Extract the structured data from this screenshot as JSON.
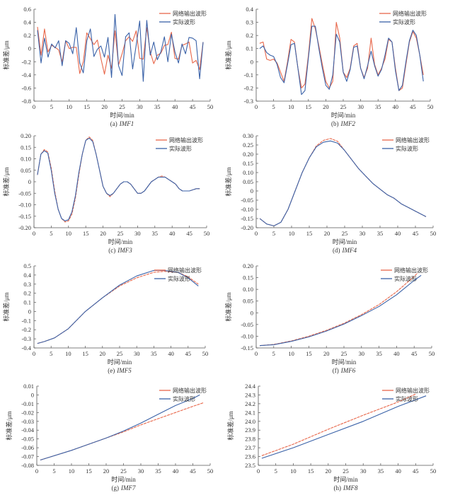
{
  "legend": {
    "predicted": "网络输出波形",
    "actual": "实际波形"
  },
  "colors": {
    "predicted": "#e8674a",
    "actual": "#3a62a8",
    "axis": "#555555"
  },
  "chart_data": [
    {
      "type": "line",
      "id": "a",
      "caption_prefix": "(a)",
      "caption_name": "IMF1",
      "xlabel": "时间/min",
      "ylabel": "标准差/μm",
      "xlim": [
        0,
        50
      ],
      "ylim": [
        -0.8,
        0.6
      ],
      "xticks": [
        "0",
        "5",
        "10",
        "15",
        "20",
        "25",
        "30",
        "35",
        "40",
        "45",
        "50"
      ],
      "yticks": [
        "-0.8",
        "-0.6",
        "-0.4",
        "-0.2",
        "0",
        "0.2",
        "0.4",
        "0.6"
      ],
      "series": [
        {
          "name": "网络输出波形",
          "x_start": 1,
          "values": [
            0.33,
            -0.1,
            0.3,
            -0.05,
            0.05,
            0.02,
            -0.02,
            -0.2,
            0.12,
            0.0,
            0.02,
            0.02,
            -0.38,
            -0.2,
            0.24,
            0.15,
            0.06,
            0.13,
            -0.15,
            -0.39,
            -0.1,
            -0.3,
            0.27,
            -0.25,
            -0.08,
            0.12,
            0.18,
            0.11,
            0.27,
            -0.15,
            -0.16,
            0.32,
            -0.05,
            -0.23,
            -0.1,
            -0.07,
            0.05,
            0.06,
            0.25,
            -0.15,
            -0.16,
            0.05,
            0.07,
            0.1,
            -0.22,
            -0.18,
            -0.32,
            0.1
          ]
        },
        {
          "name": "实际波形",
          "x_start": 1,
          "values": [
            0.28,
            -0.22,
            0.16,
            -0.13,
            0.07,
            0.01,
            0.12,
            -0.26,
            0.12,
            0.08,
            -0.08,
            0.32,
            -0.22,
            -0.37,
            0.12,
            0.3,
            -0.12,
            -0.01,
            0.04,
            -0.13,
            0.17,
            -0.44,
            0.52,
            -0.26,
            -0.41,
            0.18,
            0.24,
            -0.31,
            0.05,
            0.42,
            -0.5,
            0.43,
            -0.1,
            0.1,
            -0.17,
            -0.05,
            0.18,
            -0.2,
            0.22,
            -0.05,
            -0.22,
            0.07,
            -0.08,
            0.17,
            0.16,
            0.12,
            -0.46,
            0.1
          ]
        }
      ]
    },
    {
      "type": "line",
      "id": "b",
      "caption_prefix": "(b)",
      "caption_name": "IMF2",
      "xlabel": "时间/min",
      "ylabel": "标准差/μm",
      "xlim": [
        0,
        50
      ],
      "ylim": [
        -0.3,
        0.4
      ],
      "xticks": [
        "0",
        "5",
        "10",
        "15",
        "20",
        "25",
        "30",
        "35",
        "40",
        "45",
        "50"
      ],
      "yticks": [
        "-0.3",
        "-0.2",
        "-0.1",
        "0",
        "0.1",
        "0.2",
        "0.3",
        "0.4"
      ],
      "series": [
        {
          "name": "网络输出波形",
          "x_start": 1,
          "values": [
            0.14,
            0.15,
            0.02,
            0.01,
            0.02,
            -0.01,
            -0.08,
            -0.15,
            0.0,
            0.17,
            0.15,
            -0.05,
            -0.2,
            -0.17,
            0.05,
            0.33,
            0.25,
            0.12,
            -0.02,
            -0.15,
            -0.2,
            -0.15,
            0.3,
            0.18,
            -0.08,
            -0.12,
            -0.05,
            0.12,
            0.14,
            -0.05,
            -0.12,
            -0.05,
            0.18,
            -0.02,
            -0.1,
            -0.05,
            0.02,
            0.17,
            0.15,
            -0.05,
            -0.22,
            -0.2,
            -0.02,
            0.15,
            0.23,
            0.18,
            0.05,
            -0.1
          ]
        },
        {
          "name": "实际波形",
          "x_start": 1,
          "values": [
            0.1,
            0.12,
            0.07,
            0.05,
            0.04,
            -0.02,
            -0.12,
            -0.16,
            -0.02,
            0.13,
            0.14,
            -0.05,
            -0.25,
            -0.22,
            0.03,
            0.27,
            0.27,
            0.1,
            -0.05,
            -0.18,
            -0.21,
            -0.1,
            0.21,
            0.15,
            -0.08,
            -0.15,
            -0.06,
            0.11,
            0.12,
            -0.05,
            -0.13,
            -0.03,
            0.08,
            -0.03,
            -0.11,
            -0.06,
            0.05,
            0.18,
            0.15,
            -0.07,
            -0.22,
            -0.18,
            0.0,
            0.16,
            0.24,
            0.2,
            0.05,
            -0.15
          ]
        }
      ]
    },
    {
      "type": "line",
      "id": "c",
      "caption_prefix": "(c)",
      "caption_name": "IMF3",
      "xlabel": "时间/min",
      "ylabel": "标准差/μm",
      "xlim": [
        0,
        50
      ],
      "ylim": [
        -0.2,
        0.2
      ],
      "xticks": [
        "0",
        "5",
        "10",
        "15",
        "20",
        "25",
        "30",
        "35",
        "40",
        "45",
        "50"
      ],
      "yticks": [
        "-0.20",
        "-0.15",
        "-0.10",
        "-0.05",
        "0",
        "0.05",
        "0.10",
        "0.15",
        "0.20"
      ],
      "series": [
        {
          "name": "网络输出波形",
          "x_start": 1,
          "values": [
            0.03,
            0.12,
            0.14,
            0.13,
            0.06,
            -0.04,
            -0.12,
            -0.16,
            -0.175,
            -0.17,
            -0.14,
            -0.07,
            0.03,
            0.12,
            0.18,
            0.195,
            0.18,
            0.12,
            0.05,
            -0.02,
            -0.05,
            -0.065,
            -0.05,
            -0.03,
            -0.01,
            0.0,
            0.0,
            -0.01,
            -0.03,
            -0.05,
            -0.05,
            -0.04,
            -0.02,
            0.0,
            0.01,
            0.02,
            0.025,
            0.02,
            0.01,
            0.0,
            -0.01,
            -0.03,
            -0.04,
            -0.04,
            -0.04,
            -0.035,
            -0.03,
            -0.03
          ]
        },
        {
          "name": "实际波形",
          "x_start": 1,
          "values": [
            0.03,
            0.12,
            0.135,
            0.125,
            0.05,
            -0.05,
            -0.12,
            -0.16,
            -0.17,
            -0.165,
            -0.13,
            -0.06,
            0.04,
            0.12,
            0.18,
            0.19,
            0.175,
            0.12,
            0.05,
            -0.02,
            -0.05,
            -0.06,
            -0.05,
            -0.03,
            -0.01,
            0.0,
            0.0,
            -0.01,
            -0.03,
            -0.05,
            -0.05,
            -0.04,
            -0.02,
            0.0,
            0.01,
            0.02,
            0.02,
            0.02,
            0.01,
            0.0,
            -0.01,
            -0.03,
            -0.04,
            -0.04,
            -0.04,
            -0.035,
            -0.03,
            -0.03
          ]
        }
      ]
    },
    {
      "type": "line",
      "id": "d",
      "caption_prefix": "(d)",
      "caption_name": "IMF4",
      "xlabel": "时间/min",
      "ylabel": "标准差/μm",
      "xlim": [
        0,
        50
      ],
      "ylim": [
        -0.2,
        0.3
      ],
      "xticks": [
        "0",
        "5",
        "10",
        "15",
        "20",
        "25",
        "30",
        "35",
        "40",
        "45",
        "50"
      ],
      "yticks": [
        "-0.20",
        "-0.15",
        "-0.10",
        "-0.05",
        "0",
        "0.05",
        "0.10",
        "0.15",
        "0.20",
        "0.25",
        "0.30"
      ],
      "series": [
        {
          "name": "网络输出波形",
          "x": [
            1,
            3,
            5,
            7,
            9,
            11,
            13,
            15,
            17,
            19,
            21,
            23,
            25,
            27,
            29,
            31,
            33,
            35,
            37,
            39,
            41,
            43,
            45,
            48
          ],
          "values": [
            -0.15,
            -0.18,
            -0.19,
            -0.17,
            -0.1,
            0.0,
            0.1,
            0.18,
            0.245,
            0.275,
            0.285,
            0.27,
            0.22,
            0.17,
            0.12,
            0.08,
            0.04,
            0.01,
            -0.02,
            -0.04,
            -0.07,
            -0.09,
            -0.11,
            -0.14
          ]
        },
        {
          "name": "实际波形",
          "x": [
            1,
            3,
            5,
            7,
            9,
            11,
            13,
            15,
            17,
            19,
            21,
            23,
            25,
            27,
            29,
            31,
            33,
            35,
            37,
            39,
            41,
            43,
            45,
            48
          ],
          "values": [
            -0.15,
            -0.18,
            -0.19,
            -0.17,
            -0.1,
            0.0,
            0.1,
            0.18,
            0.24,
            0.265,
            0.272,
            0.26,
            0.22,
            0.17,
            0.12,
            0.08,
            0.04,
            0.01,
            -0.02,
            -0.04,
            -0.07,
            -0.09,
            -0.11,
            -0.14
          ]
        }
      ]
    },
    {
      "type": "line",
      "id": "e",
      "caption_prefix": "(e)",
      "caption_name": "IMF5",
      "xlabel": "时间/min",
      "ylabel": "标准差/μm",
      "xlim": [
        0,
        50
      ],
      "ylim": [
        -0.4,
        0.5
      ],
      "xticks": [
        "0",
        "5",
        "10",
        "15",
        "20",
        "25",
        "30",
        "35",
        "40",
        "45",
        "50"
      ],
      "yticks": [
        "-0.4",
        "-0.3",
        "-0.2",
        "-0.1",
        "0",
        "0.1",
        "0.2",
        "0.3",
        "0.4",
        "0.5"
      ],
      "series": [
        {
          "name": "网络输出波形",
          "x": [
            1,
            3,
            6,
            10,
            15,
            20,
            25,
            30,
            35,
            38,
            42,
            45,
            48
          ],
          "values": [
            -0.35,
            -0.33,
            -0.29,
            -0.19,
            0.0,
            0.15,
            0.28,
            0.37,
            0.43,
            0.44,
            0.43,
            0.38,
            0.3
          ]
        },
        {
          "name": "实际波形",
          "x": [
            1,
            3,
            6,
            10,
            15,
            20,
            25,
            30,
            35,
            38,
            42,
            45,
            48
          ],
          "values": [
            -0.35,
            -0.33,
            -0.29,
            -0.19,
            0.0,
            0.15,
            0.29,
            0.39,
            0.45,
            0.45,
            0.43,
            0.37,
            0.28
          ]
        }
      ]
    },
    {
      "type": "line",
      "id": "f",
      "caption_prefix": "(f)",
      "caption_name": "IMF6",
      "xlabel": "时间/min",
      "ylabel": "标准差/μm",
      "xlim": [
        0,
        50
      ],
      "ylim": [
        -0.15,
        0.2
      ],
      "xticks": [
        "0",
        "5",
        "10",
        "15",
        "20",
        "25",
        "30",
        "35",
        "40",
        "45",
        "50"
      ],
      "yticks": [
        "-0.15",
        "-0.10",
        "-0.05",
        "0",
        "0.05",
        "0.10",
        "0.15",
        "0.20"
      ],
      "series": [
        {
          "name": "网络输出波形",
          "x": [
            1,
            5,
            10,
            15,
            20,
            25,
            30,
            35,
            40,
            45,
            46
          ],
          "values": [
            -0.14,
            -0.135,
            -0.12,
            -0.1,
            -0.075,
            -0.045,
            -0.008,
            0.035,
            0.09,
            0.155,
            0.17
          ]
        },
        {
          "name": "实际波形",
          "x": [
            1,
            5,
            10,
            15,
            20,
            25,
            30,
            35,
            40,
            45,
            47
          ],
          "values": [
            -0.14,
            -0.136,
            -0.122,
            -0.103,
            -0.078,
            -0.048,
            -0.012,
            0.027,
            0.077,
            0.138,
            0.16
          ]
        }
      ]
    },
    {
      "type": "line",
      "id": "g",
      "caption_prefix": "(g)",
      "caption_name": "IMF7",
      "xlabel": "时间/min",
      "ylabel": "标准差/μm",
      "xlim": [
        0,
        50
      ],
      "ylim": [
        -0.08,
        0.01
      ],
      "xticks": [
        "0",
        "5",
        "10",
        "15",
        "20",
        "25",
        "30",
        "35",
        "40",
        "45",
        "50"
      ],
      "yticks": [
        "-0.08",
        "-0.07",
        "-0.06",
        "-0.05",
        "-0.04",
        "-0.03",
        "-0.02",
        "-0.01",
        "0",
        "0.01"
      ],
      "series": [
        {
          "name": "网络输出波形",
          "x": [
            1,
            10,
            20,
            25,
            30,
            35,
            40,
            45,
            48
          ],
          "values": [
            -0.074,
            -0.063,
            -0.049,
            -0.042,
            -0.034,
            -0.027,
            -0.02,
            -0.013,
            -0.009
          ]
        },
        {
          "name": "实际波形",
          "x": [
            1,
            10,
            20,
            25,
            30,
            35,
            40,
            45,
            47
          ],
          "values": [
            -0.074,
            -0.063,
            -0.049,
            -0.041,
            -0.032,
            -0.022,
            -0.012,
            -0.004,
            0.0
          ]
        }
      ]
    },
    {
      "type": "line",
      "id": "h",
      "caption_prefix": "(h)",
      "caption_name": "IMF8",
      "xlabel": "时间/min",
      "ylabel": "标准差/μm",
      "xlim": [
        0,
        50
      ],
      "ylim": [
        23.5,
        24.4
      ],
      "xticks": [
        "0",
        "5",
        "10",
        "15",
        "20",
        "25",
        "30",
        "35",
        "40",
        "45",
        "50"
      ],
      "yticks": [
        "23.5",
        "23.6",
        "23.7",
        "23.8",
        "23.9",
        "24.0",
        "24.1",
        "24.2",
        "24.3",
        "24.4"
      ],
      "series": [
        {
          "name": "网络输出波形",
          "x": [
            1,
            10,
            20,
            30,
            40,
            45
          ],
          "values": [
            23.61,
            23.74,
            23.91,
            24.07,
            24.22,
            24.31
          ]
        },
        {
          "name": "实际波形",
          "x": [
            1,
            10,
            20,
            30,
            40,
            48
          ],
          "values": [
            23.58,
            23.7,
            23.85,
            24.0,
            24.17,
            24.29
          ]
        }
      ]
    }
  ]
}
